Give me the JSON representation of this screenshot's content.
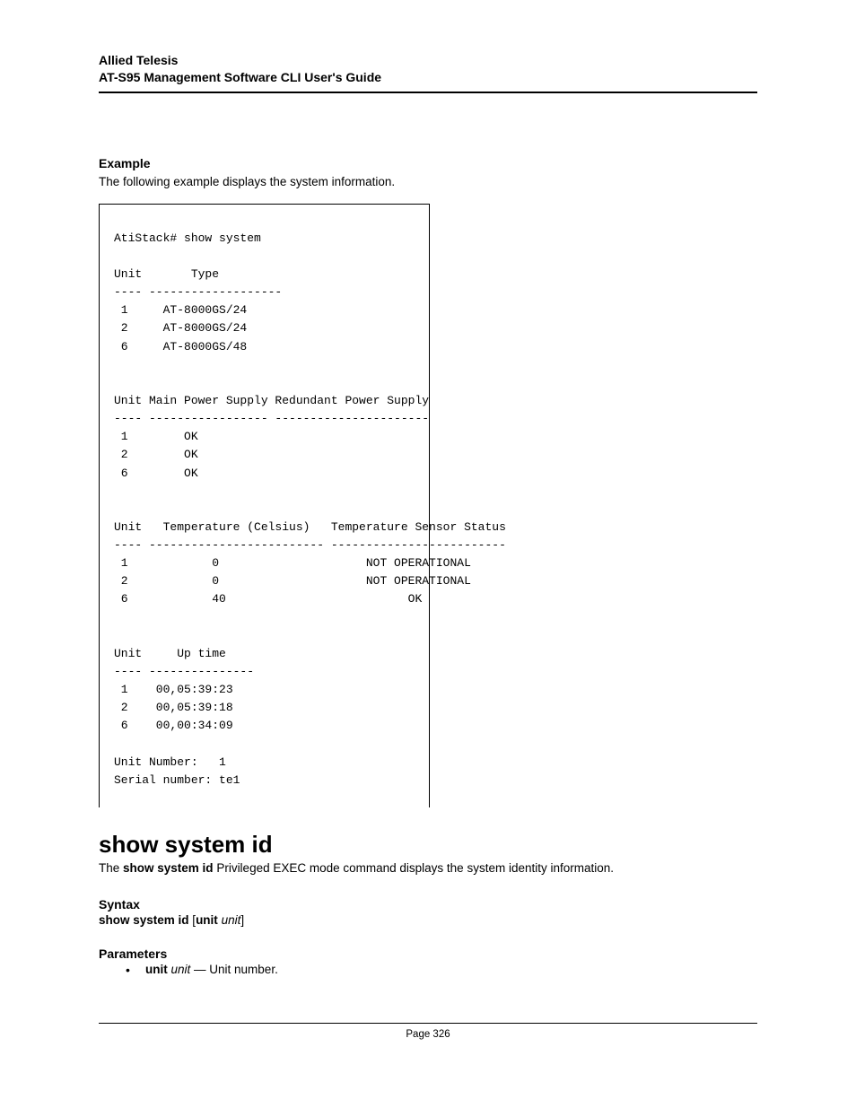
{
  "header": {
    "line1": "Allied Telesis",
    "line2": "AT-S95 Management Software CLI User's Guide"
  },
  "example": {
    "heading": "Example",
    "intro": "The following example displays the system information.",
    "code": "AtiStack# show system\n\nUnit       Type\n---- -------------------\n 1     AT-8000GS/24\n 2     AT-8000GS/24\n 6     AT-8000GS/48\n\n\nUnit Main Power Supply Redundant Power Supply\n---- ----------------- ----------------------\n 1        OK\n 2        OK\n 6        OK\n\n\nUnit   Temperature (Celsius)   Temperature Sensor Status\n---- ------------------------- -------------------------\n 1            0                     NOT OPERATIONAL\n 2            0                     NOT OPERATIONAL\n 6            40                          OK\n\n\nUnit     Up time\n---- ---------------\n 1    00,05:39:23\n 2    00,05:39:18\n 6    00,00:34:09\n\nUnit Number:   1\nSerial number: te1"
  },
  "command": {
    "title": "show system id",
    "desc_pre": "The ",
    "desc_bold": "show system id",
    "desc_post": " Privileged EXEC mode command displays the system identity information."
  },
  "syntax": {
    "heading": "Syntax",
    "cmd_bold": "show system id",
    "bracket_open": " [",
    "unit_bold": "unit",
    "space": " ",
    "unit_italic": "unit",
    "bracket_close": "]"
  },
  "parameters": {
    "heading": "Parameters",
    "item_bold": "unit",
    "item_italic": " unit",
    "item_rest": " — Unit number."
  },
  "footer": {
    "text": "Page 326"
  }
}
